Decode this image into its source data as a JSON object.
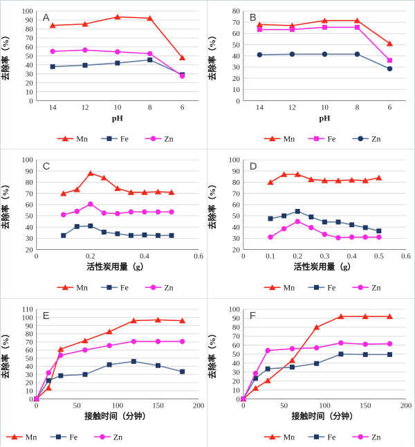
{
  "style": {
    "red": "#ef2b1d",
    "magenta": "#f32ade",
    "navy_marker": "#1f3864",
    "navy_line": "#5d7aa0",
    "grid_color": "#d9d9d9",
    "axis_color": "#808080"
  },
  "chart_data": [
    {
      "id": "A",
      "panel_label": "A",
      "type": "line",
      "ylabel": "去除率（%）",
      "xlabel": "pH",
      "y_axis": {
        "min": 0,
        "max": 100,
        "step": 10
      },
      "x_axis": {
        "type": "category",
        "categories": [
          "14",
          "12",
          "10",
          "8",
          "6"
        ]
      },
      "legend_align": "center",
      "series": [
        {
          "name": "Mn",
          "marker": "triangle",
          "line_color": "#ef2b1d",
          "marker_color": "#ef2b1d",
          "values": [
            84,
            85.5,
            93.5,
            92,
            48
          ]
        },
        {
          "name": "Fe",
          "marker": "square",
          "line_color": "#5d7aa0",
          "marker_color": "#1f3864",
          "values": [
            38,
            39.5,
            42,
            45.5,
            29
          ]
        },
        {
          "name": "Zn",
          "marker": "circle",
          "line_color": "#f32ade",
          "marker_color": "#f32ade",
          "values": [
            55,
            56.5,
            54.5,
            52.5,
            27.5
          ]
        }
      ]
    },
    {
      "id": "B",
      "panel_label": "B",
      "type": "line",
      "ylabel": "去除率（%）",
      "xlabel": "pH",
      "y_axis": {
        "min": 0,
        "max": 80,
        "step": 10
      },
      "x_axis": {
        "type": "category",
        "categories": [
          "14",
          "12",
          "10",
          "8",
          "6"
        ]
      },
      "legend_align": "center",
      "series": [
        {
          "name": "Mn",
          "marker": "triangle",
          "line_color": "#ef2b1d",
          "marker_color": "#ef2b1d",
          "values": [
            68,
            67,
            71.5,
            71.5,
            51
          ]
        },
        {
          "name": "Fe",
          "marker": "square",
          "line_color": "#f32ade",
          "marker_color": "#f32ade",
          "values": [
            63.5,
            63.5,
            65.5,
            65.5,
            36
          ]
        },
        {
          "name": "Zn",
          "marker": "circle",
          "line_color": "#5d7aa0",
          "marker_color": "#1f3864",
          "values": [
            41,
            41.5,
            41.5,
            41.5,
            28.5
          ]
        }
      ]
    },
    {
      "id": "C",
      "panel_label": "C",
      "type": "line",
      "ylabel": "去除率（%）",
      "xlabel": "活性炭用量（g）",
      "y_axis": {
        "min": 20,
        "max": 100,
        "step": 10
      },
      "x_axis": {
        "type": "linear",
        "min": 0,
        "max": 0.6,
        "ticks": [
          0,
          0.2,
          0.4,
          0.6
        ],
        "tick_labels": [
          "0",
          "0.2",
          "0.4",
          "0.6"
        ]
      },
      "x_points": [
        0.1,
        0.15,
        0.2,
        0.25,
        0.3,
        0.35,
        0.4,
        0.45,
        0.5
      ],
      "legend_align": "center",
      "series": [
        {
          "name": "Mn",
          "marker": "triangle",
          "line_color": "#ef2b1d",
          "marker_color": "#ef2b1d",
          "values": [
            70,
            73.5,
            88,
            84,
            74.5,
            71,
            71,
            71.5,
            71
          ]
        },
        {
          "name": "Fe",
          "marker": "square",
          "line_color": "#5d7aa0",
          "marker_color": "#1f3864",
          "values": [
            32.5,
            40.5,
            41,
            35.5,
            34,
            32.5,
            33,
            32.5,
            32.5
          ]
        },
        {
          "name": "Zn",
          "marker": "circle",
          "line_color": "#f32ade",
          "marker_color": "#f32ade",
          "values": [
            51,
            54,
            60.5,
            52.5,
            52,
            53.5,
            53.5,
            53.5,
            53.5
          ]
        }
      ]
    },
    {
      "id": "D",
      "panel_label": "D",
      "type": "line",
      "ylabel": "去除率（%）",
      "xlabel": "活性炭用量（g）",
      "y_axis": {
        "min": 20,
        "max": 100,
        "step": 10
      },
      "x_axis": {
        "type": "linear",
        "min": 0,
        "max": 0.6,
        "ticks": [
          0,
          0.1,
          0.2,
          0.3,
          0.4,
          0.5,
          0.6
        ],
        "tick_labels": [
          "0",
          "0.1",
          "0.2",
          "0.3",
          "0.4",
          "0.5",
          "0.6"
        ]
      },
      "x_points": [
        0.1,
        0.15,
        0.2,
        0.25,
        0.3,
        0.35,
        0.4,
        0.45,
        0.5
      ],
      "legend_align": "center",
      "series": [
        {
          "name": "Mn",
          "marker": "triangle",
          "line_color": "#ef2b1d",
          "marker_color": "#ef2b1d",
          "values": [
            80,
            87,
            87,
            82.5,
            81.5,
            81.5,
            82,
            81.5,
            84
          ]
        },
        {
          "name": "Fe",
          "marker": "square",
          "line_color": "#5d7aa0",
          "marker_color": "#1f3864",
          "values": [
            47.5,
            50,
            54,
            49,
            44.5,
            44.5,
            42,
            39.5,
            36.5
          ]
        },
        {
          "name": "Zn",
          "marker": "circle",
          "line_color": "#f32ade",
          "marker_color": "#f32ade",
          "values": [
            31,
            38.5,
            45,
            39.5,
            33.5,
            30.5,
            31,
            31,
            31
          ]
        }
      ]
    },
    {
      "id": "E",
      "panel_label": "E",
      "type": "line",
      "ylabel": "去除率（%）",
      "xlabel": "接触时间（分钟）",
      "y_axis": {
        "min": 0,
        "max": 110,
        "step": 10
      },
      "x_axis": {
        "type": "linear",
        "min": 0,
        "max": 200,
        "ticks": [
          0,
          50,
          100,
          150,
          200
        ],
        "tick_labels": [
          "0",
          "50",
          "100",
          "150",
          "200"
        ]
      },
      "x_points": [
        0,
        15,
        30,
        60,
        90,
        120,
        150,
        180
      ],
      "legend_align": "left",
      "series": [
        {
          "name": "Mn",
          "marker": "triangle",
          "line_color": "#ef2b1d",
          "marker_color": "#ef2b1d",
          "values": [
            0,
            13.5,
            61,
            71.5,
            82.5,
            96,
            97,
            96
          ]
        },
        {
          "name": "Fe",
          "marker": "square",
          "line_color": "#5d7aa0",
          "marker_color": "#1f3864",
          "values": [
            0,
            22.5,
            28.5,
            30,
            42,
            46,
            41,
            33.5
          ]
        },
        {
          "name": "Zn",
          "marker": "circle",
          "line_color": "#f32ade",
          "marker_color": "#f32ade",
          "values": [
            0,
            32,
            53.5,
            60,
            65.5,
            70.5,
            70.5,
            70.5
          ]
        }
      ]
    },
    {
      "id": "F",
      "panel_label": "F",
      "type": "line",
      "ylabel": "去除率（%）",
      "xlabel": "接触时间（分钟）",
      "y_axis": {
        "min": 0,
        "max": 100,
        "step": 10
      },
      "x_axis": {
        "type": "linear",
        "min": 0,
        "max": 200,
        "ticks": [
          0,
          50,
          100,
          150,
          200
        ],
        "tick_labels": [
          "0",
          "50",
          "100",
          "150",
          "200"
        ]
      },
      "x_points": [
        0,
        15,
        30,
        60,
        90,
        120,
        150,
        180
      ],
      "legend_align": "center",
      "series": [
        {
          "name": "Mn",
          "marker": "triangle",
          "line_color": "#ef2b1d",
          "marker_color": "#ef2b1d",
          "values": [
            0,
            12,
            20.5,
            43,
            80,
            92,
            92,
            92
          ]
        },
        {
          "name": "Fe",
          "marker": "square",
          "line_color": "#5d7aa0",
          "marker_color": "#1f3864",
          "values": [
            0,
            23,
            33.5,
            35.5,
            39.5,
            50,
            49.5,
            49.5
          ]
        },
        {
          "name": "Zn",
          "marker": "circle",
          "line_color": "#f32ade",
          "marker_color": "#f32ade",
          "values": [
            0,
            28.5,
            54,
            56,
            57,
            62.5,
            61,
            61.5
          ]
        }
      ]
    }
  ]
}
